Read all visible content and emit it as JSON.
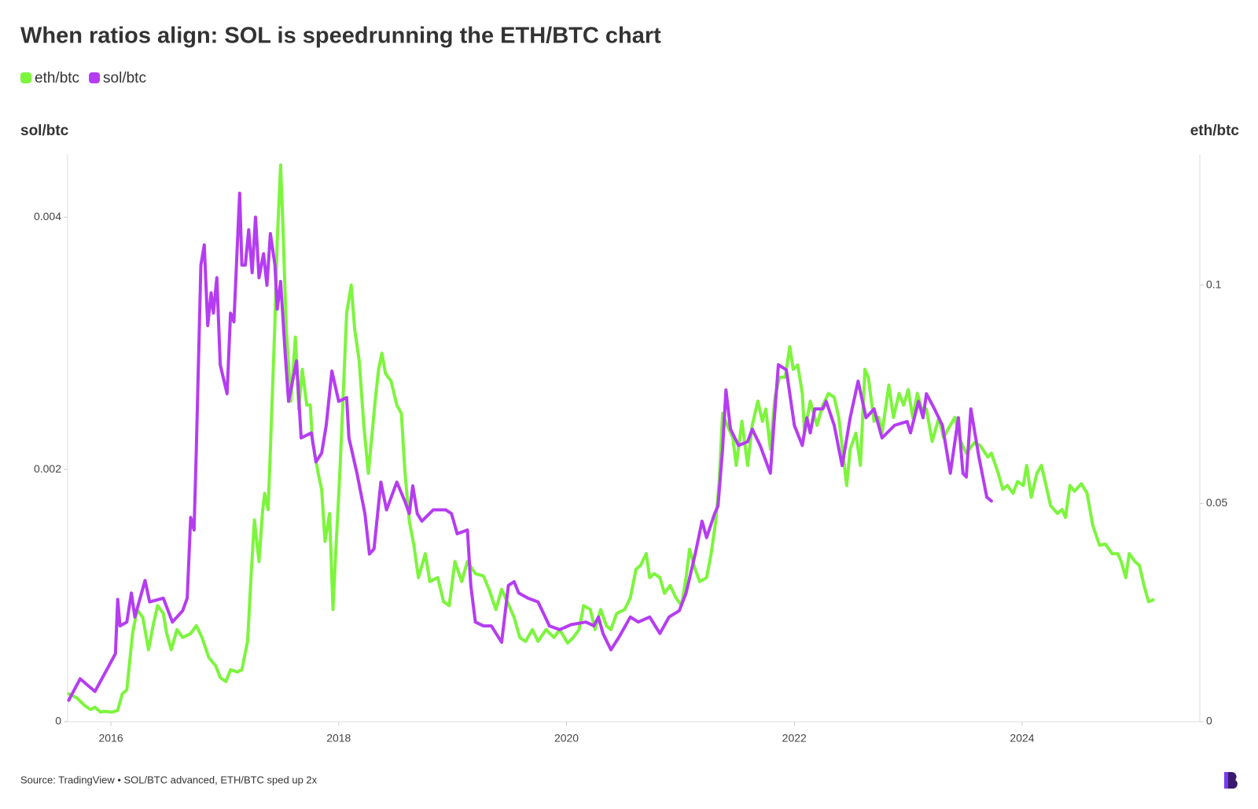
{
  "chart_data": {
    "type": "line",
    "title": "When ratios align: SOL is speedrunning the ETH/BTC chart",
    "y_label": "sol/btc",
    "y2_label": "eth/btc",
    "source": "Source: TradingView • SOL/BTC advanced, ETH/BTC sped up 2x",
    "xlim": [
      2015.62,
      2025.56
    ],
    "xticks": [
      2016,
      2018,
      2020,
      2022,
      2024
    ],
    "ylim": [
      0,
      0.0045
    ],
    "yticks": [
      0,
      0.002,
      0.004
    ],
    "y2lim": [
      0,
      0.13
    ],
    "y2ticks": [
      0,
      0.05,
      0.1
    ],
    "series": [
      {
        "name": "eth/btc",
        "color": "#7cf53c",
        "axis": "y2",
        "x": [
          2015.63,
          2015.7,
          2015.77,
          2015.82,
          2015.86,
          2015.91,
          2015.94,
          2016.01,
          2016.06,
          2016.1,
          2016.14,
          2016.19,
          2016.23,
          2016.28,
          2016.33,
          2016.37,
          2016.41,
          2016.46,
          2016.49,
          2016.53,
          2016.58,
          2016.63,
          2016.7,
          2016.75,
          2016.8,
          2016.86,
          2016.92,
          2016.96,
          2017.01,
          2017.05,
          2017.11,
          2017.15,
          2017.2,
          2017.23,
          2017.26,
          2017.3,
          2017.33,
          2017.35,
          2017.38,
          2017.4,
          2017.44,
          2017.46,
          2017.49,
          2017.51,
          2017.54,
          2017.58,
          2017.62,
          2017.65,
          2017.68,
          2017.72,
          2017.75,
          2017.77,
          2017.82,
          2017.85,
          2017.88,
          2017.92,
          2017.95,
          2017.97,
          2018.01,
          2018.04,
          2018.07,
          2018.11,
          2018.14,
          2018.18,
          2018.22,
          2018.26,
          2018.28,
          2018.32,
          2018.35,
          2018.38,
          2018.41,
          2018.46,
          2018.51,
          2018.55,
          2018.58,
          2018.62,
          2018.66,
          2018.7,
          2018.76,
          2018.8,
          2018.87,
          2018.92,
          2018.97,
          2019.02,
          2019.08,
          2019.13,
          2019.2,
          2019.27,
          2019.32,
          2019.38,
          2019.43,
          2019.48,
          2019.54,
          2019.59,
          2019.64,
          2019.7,
          2019.75,
          2019.82,
          2019.89,
          2019.94,
          2020.01,
          2020.06,
          2020.11,
          2020.15,
          2020.21,
          2020.25,
          2020.3,
          2020.35,
          2020.39,
          2020.44,
          2020.51,
          2020.56,
          2020.61,
          2020.65,
          2020.7,
          2020.73,
          2020.77,
          2020.82,
          2020.86,
          2020.91,
          2020.96,
          2021.01,
          2021.05,
          2021.08,
          2021.13,
          2021.17,
          2021.23,
          2021.27,
          2021.31,
          2021.34,
          2021.37,
          2021.41,
          2021.46,
          2021.49,
          2021.54,
          2021.59,
          2021.63,
          2021.68,
          2021.72,
          2021.75,
          2021.79,
          2021.83,
          2021.87,
          2021.92,
          2021.96,
          2021.99,
          2022.03,
          2022.07,
          2022.09,
          2022.14,
          2022.2,
          2022.25,
          2022.3,
          2022.35,
          2022.39,
          2022.43,
          2022.46,
          2022.49,
          2022.54,
          2022.58,
          2022.62,
          2022.65,
          2022.7,
          2022.74,
          2022.77,
          2022.83,
          2022.87,
          2022.92,
          2022.96,
          2023.0,
          2023.04,
          2023.08,
          2023.13,
          2023.16,
          2023.21,
          2023.27,
          2023.31,
          2023.37,
          2023.41,
          2023.46,
          2023.51,
          2023.58,
          2023.63,
          2023.7,
          2023.73,
          2023.79,
          2023.83,
          2023.87,
          2023.92,
          2023.96,
          2024.01,
          2024.04,
          2024.08,
          2024.13,
          2024.17,
          2024.21,
          2024.25,
          2024.31,
          2024.35,
          2024.38,
          2024.42,
          2024.46,
          2024.52,
          2024.57,
          2024.62,
          2024.68,
          2024.73,
          2024.79,
          2024.84,
          2024.87,
          2024.91,
          2024.94,
          2024.99,
          2025.03,
          2025.07,
          2025.11,
          2025.15
        ],
        "values": [
          0.0064,
          0.0055,
          0.0037,
          0.0028,
          0.0033,
          0.0022,
          0.0024,
          0.0022,
          0.0026,
          0.0064,
          0.0073,
          0.0202,
          0.0257,
          0.0239,
          0.0165,
          0.022,
          0.0266,
          0.0248,
          0.0202,
          0.0165,
          0.0211,
          0.0193,
          0.0202,
          0.022,
          0.0193,
          0.0147,
          0.0128,
          0.0101,
          0.0092,
          0.0119,
          0.0114,
          0.0119,
          0.0184,
          0.033,
          0.0462,
          0.0367,
          0.0477,
          0.0523,
          0.0486,
          0.0624,
          0.0917,
          0.1101,
          0.1275,
          0.1138,
          0.0899,
          0.0734,
          0.0881,
          0.0716,
          0.0807,
          0.0725,
          0.0725,
          0.0642,
          0.0569,
          0.0532,
          0.0413,
          0.0477,
          0.0257,
          0.0367,
          0.0569,
          0.0752,
          0.0936,
          0.1,
          0.0899,
          0.0826,
          0.0679,
          0.0569,
          0.0624,
          0.0734,
          0.0807,
          0.0844,
          0.0798,
          0.078,
          0.0725,
          0.0706,
          0.0578,
          0.0459,
          0.0404,
          0.033,
          0.0385,
          0.0321,
          0.033,
          0.0275,
          0.0266,
          0.0367,
          0.0321,
          0.0367,
          0.0339,
          0.0334,
          0.0303,
          0.0257,
          0.0303,
          0.0275,
          0.0239,
          0.0193,
          0.0184,
          0.0211,
          0.0184,
          0.0211,
          0.0193,
          0.0211,
          0.018,
          0.0193,
          0.0211,
          0.0266,
          0.0257,
          0.0211,
          0.0257,
          0.022,
          0.0211,
          0.0248,
          0.0257,
          0.0284,
          0.0349,
          0.0358,
          0.0385,
          0.033,
          0.0339,
          0.033,
          0.0294,
          0.0312,
          0.0284,
          0.0266,
          0.033,
          0.0395,
          0.0349,
          0.0321,
          0.033,
          0.0385,
          0.0459,
          0.055,
          0.0706,
          0.0679,
          0.0651,
          0.0587,
          0.0688,
          0.0587,
          0.0679,
          0.0734,
          0.0688,
          0.0716,
          0.0624,
          0.0743,
          0.0789,
          0.0789,
          0.0859,
          0.0807,
          0.0817,
          0.0752,
          0.0661,
          0.0734,
          0.0679,
          0.0725,
          0.0752,
          0.0743,
          0.0697,
          0.0606,
          0.0541,
          0.0624,
          0.0661,
          0.0587,
          0.0807,
          0.0789,
          0.0688,
          0.0697,
          0.0661,
          0.0771,
          0.0697,
          0.0752,
          0.0725,
          0.0761,
          0.0697,
          0.0752,
          0.0706,
          0.0716,
          0.0642,
          0.0697,
          0.0651,
          0.0679,
          0.0697,
          0.0642,
          0.0615,
          0.0639,
          0.0633,
          0.0606,
          0.0615,
          0.0569,
          0.0532,
          0.0541,
          0.0523,
          0.055,
          0.0541,
          0.0587,
          0.0514,
          0.0569,
          0.0587,
          0.0541,
          0.0495,
          0.0477,
          0.0486,
          0.0468,
          0.0541,
          0.0528,
          0.0545,
          0.0523,
          0.045,
          0.0404,
          0.0407,
          0.0385,
          0.0385,
          0.0367,
          0.033,
          0.0385,
          0.0367,
          0.0358,
          0.0312,
          0.0275,
          0.0279
        ]
      },
      {
        "name": "sol/btc",
        "color": "#b53cf2",
        "x": [
          2015.63,
          2015.73,
          2015.86,
          2015.98,
          2016.04,
          2016.06,
          2016.08,
          2016.14,
          2016.18,
          2016.21,
          2016.3,
          2016.34,
          2016.46,
          2016.54,
          2016.63,
          2016.67,
          2016.7,
          2016.73,
          2016.75,
          2016.79,
          2016.82,
          2016.85,
          2016.88,
          2016.9,
          2016.93,
          2016.96,
          2017.02,
          2017.05,
          2017.08,
          2017.13,
          2017.15,
          2017.18,
          2017.21,
          2017.24,
          2017.27,
          2017.3,
          2017.34,
          2017.37,
          2017.4,
          2017.44,
          2017.46,
          2017.49,
          2017.53,
          2017.56,
          2017.63,
          2017.67,
          2017.76,
          2017.8,
          2017.85,
          2017.89,
          2017.94,
          2018.0,
          2018.07,
          2018.09,
          2018.16,
          2018.23,
          2018.27,
          2018.31,
          2018.37,
          2018.42,
          2018.51,
          2018.58,
          2018.62,
          2018.65,
          2018.69,
          2018.73,
          2018.83,
          2018.94,
          2018.99,
          2019.04,
          2019.13,
          2019.16,
          2019.2,
          2019.27,
          2019.34,
          2019.43,
          2019.49,
          2019.54,
          2019.58,
          2019.66,
          2019.75,
          2019.85,
          2019.94,
          2020.04,
          2020.17,
          2020.24,
          2020.28,
          2020.32,
          2020.39,
          2020.46,
          2020.56,
          2020.63,
          2020.73,
          2020.82,
          2020.9,
          2020.99,
          2021.05,
          2021.13,
          2021.19,
          2021.23,
          2021.3,
          2021.33,
          2021.37,
          2021.4,
          2021.44,
          2021.51,
          2021.59,
          2021.63,
          2021.7,
          2021.79,
          2021.82,
          2021.86,
          2021.93,
          2022.0,
          2022.07,
          2022.11,
          2022.14,
          2022.18,
          2022.25,
          2022.28,
          2022.35,
          2022.42,
          2022.49,
          2022.56,
          2022.63,
          2022.7,
          2022.77,
          2022.88,
          2022.99,
          2023.02,
          2023.09,
          2023.13,
          2023.16,
          2023.23,
          2023.3,
          2023.37,
          2023.44,
          2023.48,
          2023.51,
          2023.55,
          2023.62,
          2023.69,
          2023.73
        ],
        "values": [
          0.00017,
          0.00034,
          0.00024,
          0.00044,
          0.00054,
          0.00097,
          0.00076,
          0.00079,
          0.00102,
          0.00083,
          0.00112,
          0.00095,
          0.00098,
          0.00079,
          0.00088,
          0.00098,
          0.00162,
          0.00152,
          0.00216,
          0.00362,
          0.00378,
          0.00314,
          0.0034,
          0.00324,
          0.00352,
          0.00283,
          0.0026,
          0.00324,
          0.00317,
          0.00419,
          0.00362,
          0.00362,
          0.0039,
          0.00356,
          0.004,
          0.00352,
          0.00371,
          0.00346,
          0.00387,
          0.00362,
          0.00327,
          0.00349,
          0.00292,
          0.00254,
          0.00286,
          0.00225,
          0.00229,
          0.00206,
          0.00213,
          0.00235,
          0.00278,
          0.00254,
          0.00257,
          0.00225,
          0.00197,
          0.00165,
          0.00133,
          0.00137,
          0.0019,
          0.00168,
          0.0019,
          0.00175,
          0.00165,
          0.00187,
          0.00165,
          0.00159,
          0.00168,
          0.00168,
          0.00165,
          0.00149,
          0.00152,
          0.00108,
          0.00079,
          0.00076,
          0.00076,
          0.00063,
          0.00108,
          0.00111,
          0.00102,
          0.00098,
          0.00095,
          0.00076,
          0.00073,
          0.00077,
          0.00079,
          0.00076,
          0.00083,
          0.0007,
          0.00057,
          0.00067,
          0.00083,
          0.00079,
          0.00083,
          0.0007,
          0.00083,
          0.00088,
          0.00102,
          0.00133,
          0.00159,
          0.00146,
          0.00165,
          0.00171,
          0.00216,
          0.00263,
          0.00232,
          0.00219,
          0.00222,
          0.00232,
          0.00219,
          0.00197,
          0.00235,
          0.00283,
          0.00279,
          0.00235,
          0.00219,
          0.00241,
          0.00229,
          0.00248,
          0.00248,
          0.00254,
          0.00235,
          0.00203,
          0.00241,
          0.0027,
          0.00241,
          0.00248,
          0.00225,
          0.00235,
          0.00238,
          0.00229,
          0.00254,
          0.00241,
          0.0026,
          0.00248,
          0.00235,
          0.00197,
          0.00241,
          0.00197,
          0.00194,
          0.00248,
          0.0021,
          0.00178,
          0.00175
        ]
      }
    ]
  }
}
